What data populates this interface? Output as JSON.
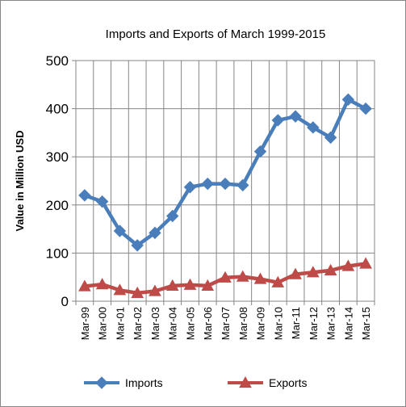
{
  "chart_data": {
    "type": "line",
    "title": "Imports and Exports of March 1999-2015",
    "ylabel": "Value in  Million  USD",
    "xlabel": "",
    "ylim": [
      0,
      500
    ],
    "yticks": [
      0,
      100,
      200,
      300,
      400,
      500
    ],
    "grid": true,
    "legend_position": "bottom",
    "categories": [
      "Mar-99",
      "Mar-00",
      "Mar-01",
      "Mar-02",
      "Mar-03",
      "Mar-04",
      "Mar-05",
      "Mar-06",
      "Mar-07",
      "Mar-08",
      "Mar-09",
      "Mar-10",
      "Mar-11",
      "Mar-12",
      "Mar-13",
      "Mar-14",
      "Mar-15"
    ],
    "series": [
      {
        "name": "Imports",
        "color": "#4a7ebb",
        "marker": "diamond",
        "values": [
          220,
          207,
          146,
          116,
          142,
          177,
          237,
          244,
          244,
          241,
          311,
          376,
          384,
          361,
          340,
          419,
          400
        ]
      },
      {
        "name": "Exports",
        "color": "#be4b48",
        "marker": "triangle",
        "values": [
          31,
          35,
          23,
          17,
          21,
          32,
          34,
          32,
          49,
          51,
          46,
          39,
          56,
          60,
          64,
          73,
          78
        ]
      }
    ]
  }
}
